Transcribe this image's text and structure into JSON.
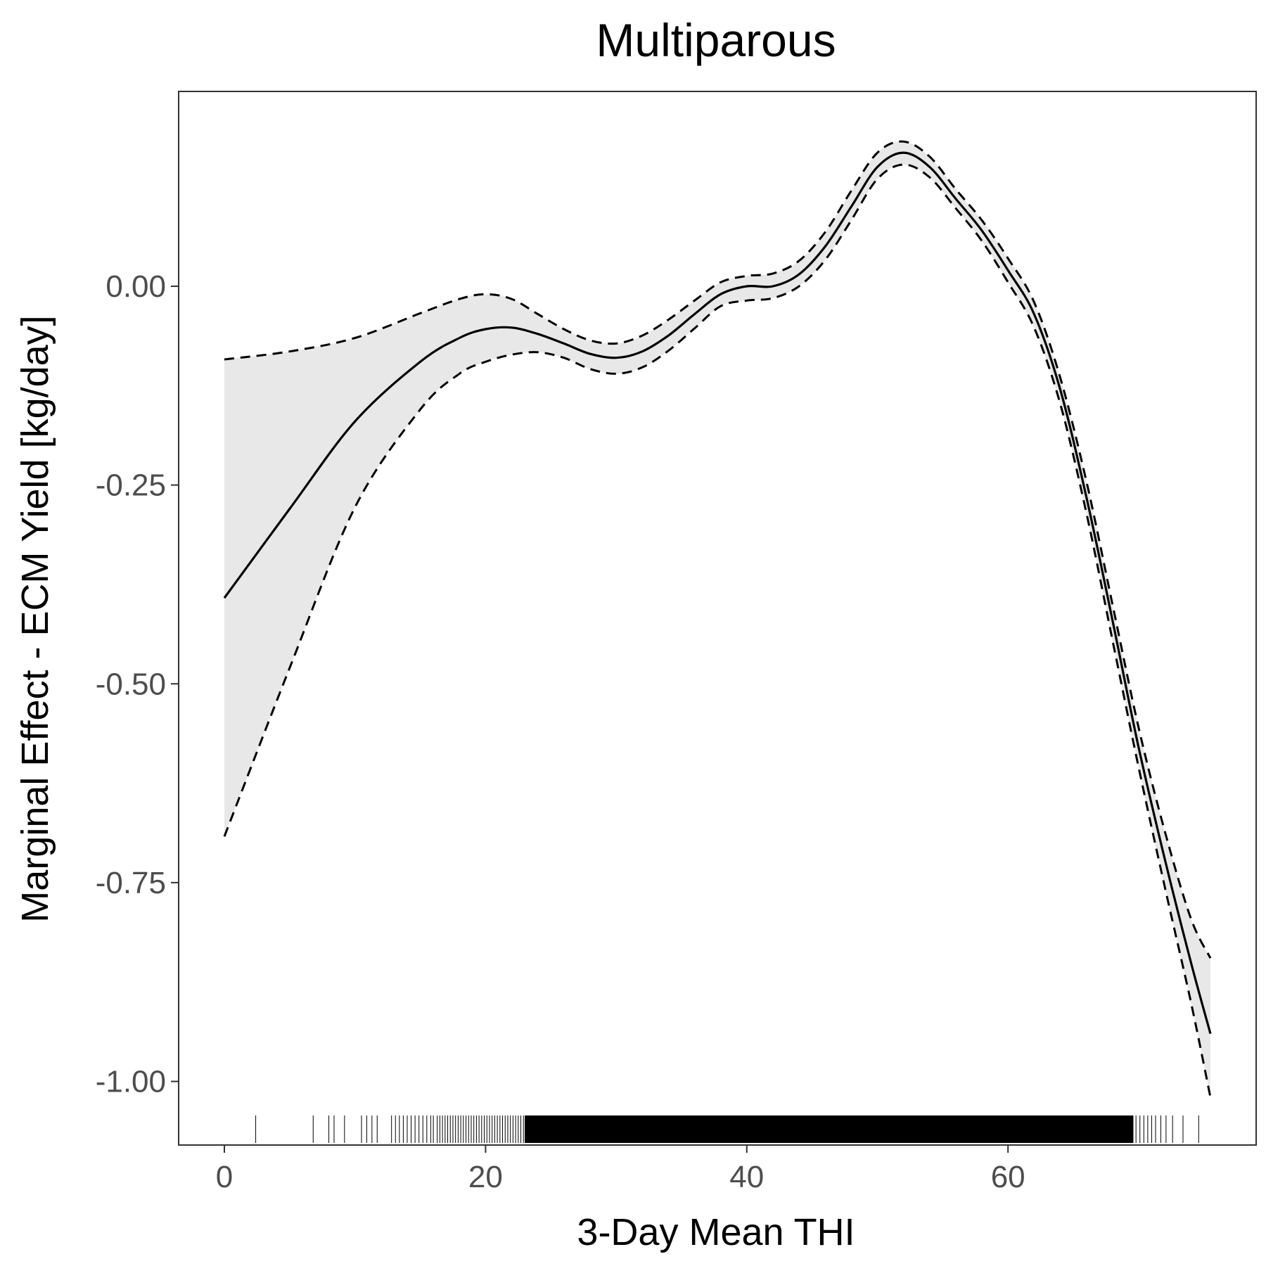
{
  "chart_data": {
    "type": "line",
    "title": "Multiparous",
    "xlabel": "3-Day Mean THI",
    "ylabel": "Marginal Effect - ECM Yield [kg/day]",
    "xlim": [
      -3.5,
      79
    ],
    "ylim": [
      -1.08,
      0.245
    ],
    "x_ticks": [
      0,
      20,
      40,
      60
    ],
    "y_ticks": [
      0.0,
      -0.25,
      -0.5,
      -0.75,
      -1.0
    ],
    "x_tick_labels": [
      "0",
      "20",
      "40",
      "60"
    ],
    "y_tick_labels": [
      "0.00",
      "-0.25",
      "-0.50",
      "-0.75",
      "-1.00"
    ],
    "grid": false,
    "legend": "none",
    "series": [
      {
        "role": "estimate",
        "x": [
          0,
          5,
          10,
          15,
          18,
          20,
          22,
          24,
          26,
          28,
          30,
          32,
          34,
          36,
          38,
          40,
          42,
          44,
          46,
          48,
          50,
          52,
          54,
          56,
          58,
          60,
          62,
          64,
          66,
          68,
          70,
          72,
          74,
          75.5
        ],
        "y": [
          -0.392,
          -0.28,
          -0.17,
          -0.095,
          -0.065,
          -0.054,
          -0.052,
          -0.06,
          -0.072,
          -0.085,
          -0.09,
          -0.082,
          -0.062,
          -0.035,
          -0.01,
          0.0,
          0.0,
          0.015,
          0.05,
          0.1,
          0.15,
          0.168,
          0.15,
          0.11,
          0.07,
          0.02,
          -0.035,
          -0.13,
          -0.265,
          -0.42,
          -0.58,
          -0.72,
          -0.85,
          -0.94
        ]
      },
      {
        "role": "upper_ci",
        "x": [
          0,
          5,
          10,
          15,
          18,
          20,
          22,
          24,
          26,
          28,
          30,
          32,
          34,
          36,
          38,
          40,
          42,
          44,
          46,
          48,
          50,
          52,
          54,
          56,
          58,
          60,
          62,
          64,
          66,
          68,
          70,
          72,
          74,
          75.5
        ],
        "y": [
          -0.092,
          -0.082,
          -0.065,
          -0.034,
          -0.016,
          -0.01,
          -0.016,
          -0.035,
          -0.054,
          -0.068,
          -0.072,
          -0.062,
          -0.042,
          -0.018,
          0.005,
          0.013,
          0.016,
          0.032,
          0.068,
          0.12,
          0.168,
          0.182,
          0.163,
          0.122,
          0.083,
          0.035,
          -0.02,
          -0.115,
          -0.245,
          -0.4,
          -0.555,
          -0.685,
          -0.795,
          -0.845
        ]
      },
      {
        "role": "lower_ci",
        "x": [
          0,
          5,
          10,
          15,
          18,
          20,
          22,
          24,
          26,
          28,
          30,
          32,
          34,
          36,
          38,
          40,
          42,
          44,
          46,
          48,
          50,
          52,
          54,
          56,
          58,
          60,
          62,
          64,
          66,
          68,
          70,
          72,
          74,
          75.5
        ],
        "y": [
          -0.692,
          -0.48,
          -0.278,
          -0.155,
          -0.11,
          -0.095,
          -0.086,
          -0.083,
          -0.09,
          -0.104,
          -0.11,
          -0.102,
          -0.081,
          -0.053,
          -0.025,
          -0.018,
          -0.015,
          0.0,
          0.033,
          0.083,
          0.135,
          0.153,
          0.137,
          0.098,
          0.057,
          0.005,
          -0.052,
          -0.148,
          -0.285,
          -0.445,
          -0.605,
          -0.755,
          -0.9,
          -1.02
        ]
      }
    ],
    "rug": {
      "sparse_x": [
        2.4,
        6.8,
        8.0,
        8.4,
        9.2,
        10.5,
        10.9,
        11.3,
        11.7,
        12.8,
        13.1,
        13.4,
        13.7,
        14.0,
        14.3,
        14.6,
        14.9,
        15.2,
        15.5,
        15.8,
        16.0,
        16.3,
        16.5,
        16.7,
        16.9,
        17.1,
        17.3,
        17.5,
        17.7,
        17.9,
        18.1,
        18.3,
        18.5,
        18.7,
        18.9,
        19.1,
        19.3,
        19.5,
        19.7,
        19.9,
        20.1,
        20.3,
        20.5,
        20.7,
        20.9,
        21.1,
        21.3,
        21.5,
        21.7,
        21.9,
        22.1,
        22.3,
        22.5,
        22.7,
        22.9,
        23.1,
        23.3
      ],
      "dense_range": [
        23.0,
        69.6
      ],
      "tail_x": [
        69.8,
        70.1,
        70.4,
        70.7,
        71.0,
        71.3,
        71.7,
        72.1,
        72.6,
        73.4,
        74.6
      ]
    }
  }
}
